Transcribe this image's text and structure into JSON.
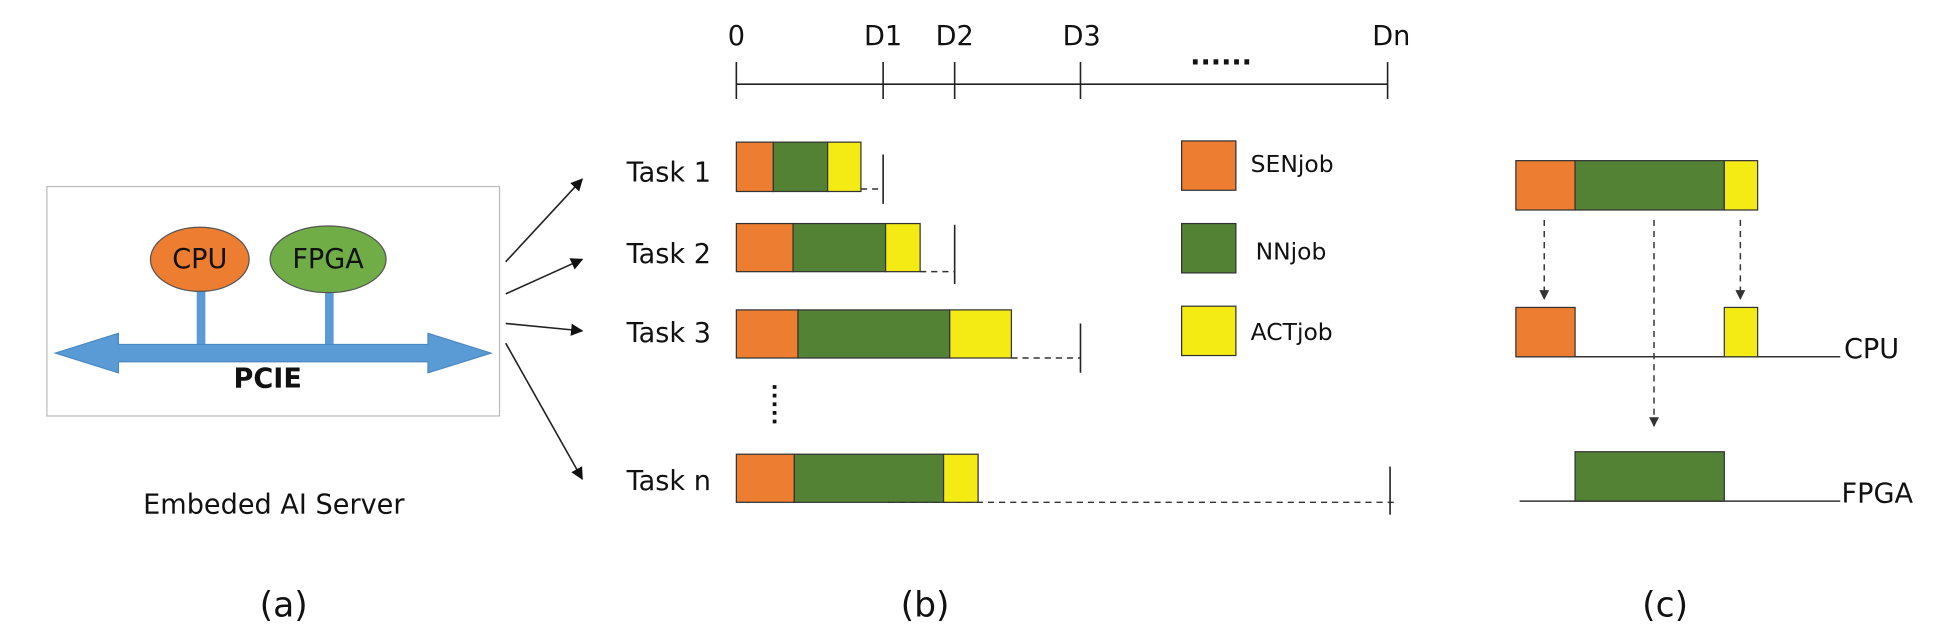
{
  "panel_a": {
    "nodes": [
      "CPU",
      "FPGA"
    ],
    "bus": "PCIE",
    "caption": "Embeded AI Server",
    "label": "(a)"
  },
  "panel_b": {
    "timeline": [
      "0",
      "D1",
      "D2",
      "D3",
      "......",
      "Dn"
    ],
    "tasks": [
      "Task 1",
      "Task 2",
      "Task 3",
      "Task n"
    ],
    "legend": [
      "SENjob",
      "NNjob",
      "ACTjob"
    ],
    "label": "(b)"
  },
  "panel_c": {
    "processors": [
      "CPU",
      "FPGA"
    ],
    "label": "(c)"
  }
}
